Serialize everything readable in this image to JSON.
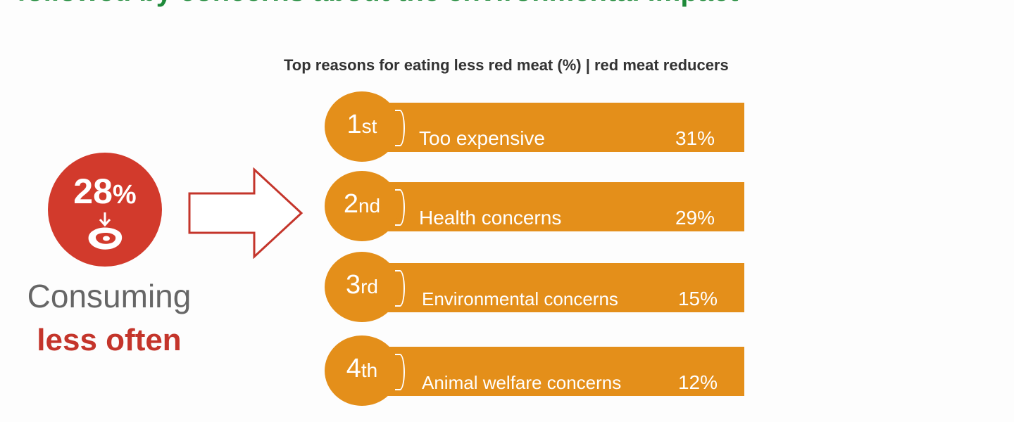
{
  "headline": "followed by concerns about the environmental impact",
  "chart_title": "Top reasons for eating less red meat (%) | red meat reducers",
  "stat": {
    "value": "28",
    "unit": "%"
  },
  "caption": {
    "line1": "Consuming",
    "line2": "less often"
  },
  "reasons": [
    {
      "rank": "1",
      "suffix": "st",
      "label": "Too expensive",
      "value": "31%"
    },
    {
      "rank": "2",
      "suffix": "nd",
      "label": "Health concerns",
      "value": "29%"
    },
    {
      "rank": "3",
      "suffix": "rd",
      "label": "Environmental concerns",
      "value": "15%"
    },
    {
      "rank": "4",
      "suffix": "th",
      "label": "Animal welfare concerns",
      "value": "12%"
    }
  ],
  "colors": {
    "green": "#1f8a3a",
    "red": "#d23a2c",
    "orange": "#e48f1a"
  },
  "icons": [
    "arrow-down-icon",
    "steak-icon",
    "right-arrow-icon"
  ]
}
